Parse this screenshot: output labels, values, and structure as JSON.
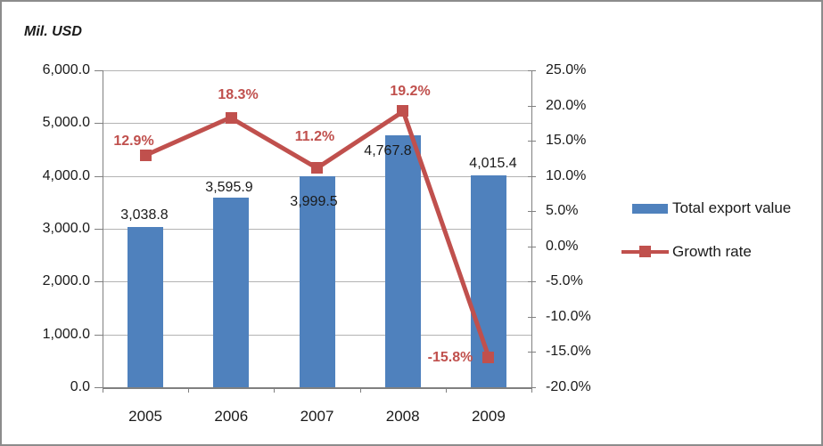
{
  "title": {
    "text": "Mil. USD"
  },
  "legend": {
    "items": [
      {
        "label": "Total export value",
        "swatch": "bar-swatch",
        "color": "#4F81BD"
      },
      {
        "label": "Growth rate",
        "swatch": "line-marker-swatch",
        "color": "#C0504D"
      }
    ]
  },
  "chart_data": {
    "type": "bar",
    "combo": "bar+line dual-axis",
    "title": "Mil. USD",
    "categories": [
      "2005",
      "2006",
      "2007",
      "2008",
      "2009"
    ],
    "series": [
      {
        "name": "Total export value",
        "type": "bar",
        "axis": "left",
        "color": "#4F81BD",
        "values": [
          3038.8,
          3595.9,
          3999.5,
          4767.8,
          4015.4
        ],
        "value_labels": [
          "3,038.8",
          "3,595.9",
          "3,999.5",
          "4,767.8",
          "4,015.4"
        ]
      },
      {
        "name": "Growth rate",
        "type": "line",
        "axis": "right",
        "color": "#C0504D",
        "marker": "square",
        "values": [
          12.9,
          18.3,
          11.2,
          19.2,
          -15.8
        ],
        "value_labels": [
          "12.9%",
          "18.3%",
          "11.2%",
          "19.2%",
          "-15.8%"
        ]
      }
    ],
    "left_axis": {
      "label": "Mil. USD",
      "min": 0,
      "max": 6000,
      "step": 1000,
      "tick_labels": [
        "6,000.0",
        "5,000.0",
        "4,000.0",
        "3,000.0",
        "2,000.0",
        "1,000.0",
        "0.0"
      ]
    },
    "right_axis": {
      "min": -20,
      "max": 25,
      "step": 5,
      "tick_labels": [
        "25.0%",
        "20.0%",
        "15.0%",
        "10.0%",
        "5.0%",
        "0.0%",
        "-5.0%",
        "-10.0%",
        "-15.0%",
        "-20.0%"
      ]
    },
    "grid": true,
    "legend_position": "right",
    "colors": {
      "bar": "#4F81BD",
      "line": "#C0504D",
      "gridline": "#b3b3b3",
      "axis": "#808080",
      "text": "#1a1a1a",
      "growth_label": "#C0504D",
      "frame_border": "#8c8c8c"
    }
  }
}
